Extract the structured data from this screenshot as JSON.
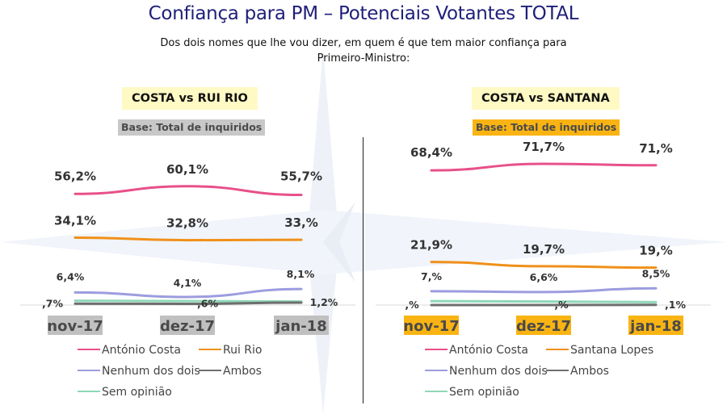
{
  "title": "Confiança para PM – Potenciais Votantes TOTAL",
  "subtitle_line1": "Dos dois nomes que lhe vou dizer, em quem é que tem maior confiança para",
  "subtitle_line2": "Primeiro-Ministro:",
  "colors": {
    "title": "#1f1f7a",
    "antonio_costa": "#e8508a",
    "opponent": "#f0901a",
    "nenhum": "#9c9ce0",
    "ambos": "#6e6e6e",
    "sem_opiniao": "#8fd8b8",
    "panel_title_bg": "#fff9c4",
    "base_grey": "#c8c8c8",
    "base_amber": "#f9b413"
  },
  "chart_data": [
    {
      "type": "line",
      "title": "COSTA vs RUI RIO",
      "base_label": "Base: Total de inquiridos",
      "categories": [
        "nov-17",
        "dez-17",
        "jan-18"
      ],
      "series": [
        {
          "name": "António Costa",
          "color_key": "antonio_costa",
          "values": [
            56.2,
            60.1,
            55.7
          ],
          "labels": [
            "56,2%",
            "60,1%",
            "55,7%"
          ]
        },
        {
          "name": "Rui Rio",
          "color_key": "opponent",
          "values": [
            34.1,
            32.8,
            33.0
          ],
          "labels": [
            "34,1%",
            "32,8%",
            "33,%"
          ]
        },
        {
          "name": "Nenhum dos dois",
          "color_key": "nenhum",
          "values": [
            6.4,
            4.1,
            8.1
          ],
          "labels": [
            "6,4%",
            "4,1%",
            "8,1%"
          ]
        },
        {
          "name": "Ambos",
          "color_key": "ambos",
          "values": [
            0.7,
            0.6,
            1.2
          ],
          "labels": [
            ",7%",
            ",6%",
            "1,2%"
          ]
        },
        {
          "name": "Sem opinião",
          "color_key": "sem_opiniao",
          "values": [
            2.2,
            2.0,
            1.8
          ],
          "labels": []
        }
      ],
      "legend": [
        "António Costa",
        "Rui Rio",
        "Nenhum dos dois",
        "Ambos",
        "Sem opinião"
      ],
      "legend_placement": "bottom",
      "ylim": [
        0,
        75
      ],
      "grid": false
    },
    {
      "type": "line",
      "title": "COSTA vs SANTANA",
      "base_label": "Base: Total de inquiridos",
      "categories": [
        "nov-17",
        "dez-17",
        "jan-18"
      ],
      "series": [
        {
          "name": "António Costa",
          "color_key": "antonio_costa",
          "values": [
            68.4,
            71.7,
            71.0
          ],
          "labels": [
            "68,4%",
            "71,7%",
            "71,%"
          ]
        },
        {
          "name": "Santana Lopes",
          "color_key": "opponent",
          "values": [
            21.9,
            19.7,
            19.0
          ],
          "labels": [
            "21,9%",
            "19,7%",
            "19,%"
          ]
        },
        {
          "name": "Nenhum dos dois",
          "color_key": "nenhum",
          "values": [
            7.0,
            6.6,
            8.5
          ],
          "labels": [
            "7,%",
            "6,6%",
            "8,5%"
          ]
        },
        {
          "name": "Ambos",
          "color_key": "ambos",
          "values": [
            0.0,
            0.0,
            0.1
          ],
          "labels": [
            ",%",
            ",%",
            ",1%"
          ]
        },
        {
          "name": "Sem opinião",
          "color_key": "sem_opiniao",
          "values": [
            2.0,
            1.8,
            1.5
          ],
          "labels": []
        }
      ],
      "legend": [
        "António Costa",
        "Santana Lopes",
        "Nenhum dos dois",
        "Ambos",
        "Sem opinião"
      ],
      "legend_placement": "bottom",
      "ylim": [
        0,
        75
      ],
      "grid": false
    }
  ]
}
